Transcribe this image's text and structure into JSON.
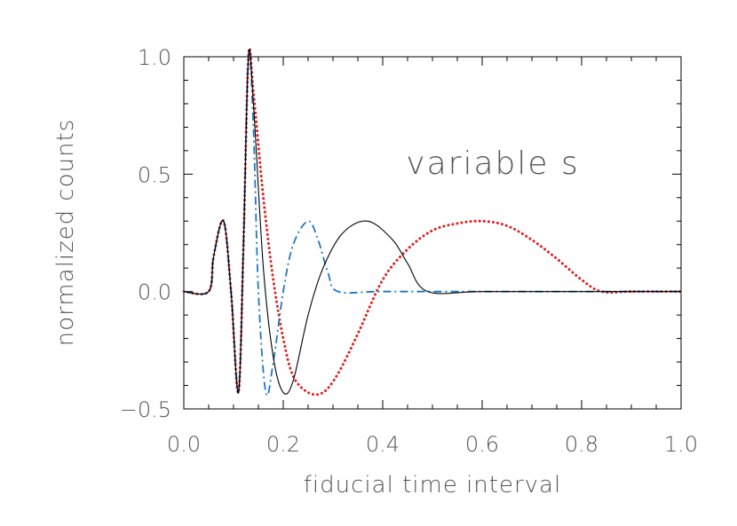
{
  "chart_data": {
    "type": "line",
    "title": "",
    "xlabel": "fiducial time interval",
    "ylabel": "normalized counts",
    "annotation": "variable s",
    "xlim": [
      0.0,
      1.0
    ],
    "ylim": [
      -0.5,
      1.0
    ],
    "xticks": [
      "0.0",
      "0.2",
      "0.4",
      "0.6",
      "0.8",
      "1.0"
    ],
    "yticks": [
      "−0.5",
      "0.0",
      "0.5",
      "1.0"
    ],
    "xtick_values": [
      0.0,
      0.2,
      0.4,
      0.6,
      0.8,
      1.0
    ],
    "ytick_values": [
      -0.5,
      0.0,
      0.5,
      1.0
    ],
    "grid": false,
    "legend": "none",
    "series": [
      {
        "style": "solid",
        "color": "#000000",
        "x": [
          0.0,
          0.05,
          0.06,
          0.08,
          0.095,
          0.11,
          0.12,
          0.13,
          0.14,
          0.16,
          0.18,
          0.2,
          0.22,
          0.25,
          0.28,
          0.32,
          0.37,
          0.42,
          0.45,
          0.49,
          0.6,
          0.8,
          1.0
        ],
        "y": [
          0.0,
          0.0,
          0.15,
          0.3,
          0.0,
          -0.43,
          0.2,
          1.0,
          0.8,
          0.1,
          -0.28,
          -0.43,
          -0.38,
          -0.1,
          0.1,
          0.25,
          0.3,
          0.22,
          0.12,
          0.0,
          0.0,
          0.0,
          0.0
        ]
      },
      {
        "style": "dash-dot",
        "color": "#1f77c8",
        "x": [
          0.0,
          0.05,
          0.06,
          0.08,
          0.095,
          0.11,
          0.12,
          0.13,
          0.14,
          0.15,
          0.165,
          0.18,
          0.2,
          0.22,
          0.25,
          0.27,
          0.29,
          0.31,
          0.4,
          0.6,
          0.8,
          1.0
        ],
        "y": [
          0.0,
          0.0,
          0.15,
          0.3,
          0.0,
          -0.43,
          0.2,
          1.0,
          0.7,
          0.0,
          -0.43,
          -0.3,
          0.0,
          0.2,
          0.3,
          0.22,
          0.08,
          0.0,
          0.0,
          0.0,
          0.0,
          0.0
        ]
      },
      {
        "style": "dotted",
        "color": "#e02020",
        "x": [
          0.0,
          0.05,
          0.06,
          0.08,
          0.095,
          0.11,
          0.12,
          0.13,
          0.14,
          0.16,
          0.18,
          0.2,
          0.22,
          0.25,
          0.28,
          0.31,
          0.35,
          0.4,
          0.45,
          0.5,
          0.55,
          0.6,
          0.65,
          0.7,
          0.75,
          0.8,
          0.84,
          0.9,
          1.0
        ],
        "y": [
          0.0,
          0.0,
          0.15,
          0.3,
          0.0,
          -0.43,
          0.2,
          1.0,
          0.85,
          0.4,
          0.05,
          -0.2,
          -0.36,
          -0.43,
          -0.43,
          -0.35,
          -0.18,
          0.05,
          0.18,
          0.26,
          0.29,
          0.3,
          0.28,
          0.22,
          0.14,
          0.05,
          0.0,
          0.0,
          0.0
        ]
      }
    ]
  }
}
